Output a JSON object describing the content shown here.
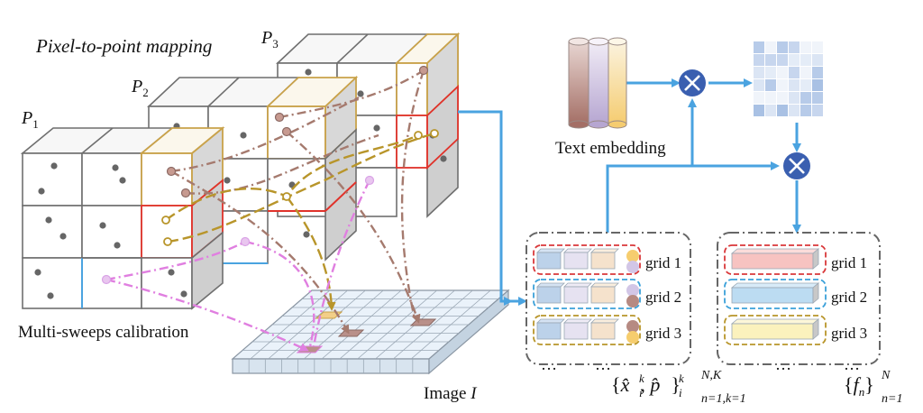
{
  "title": "Pixel-to-point mapping",
  "voxel_groups": [
    {
      "label": "P",
      "sub": "1"
    },
    {
      "label": "P",
      "sub": "2"
    },
    {
      "label": "P",
      "sub": "3"
    }
  ],
  "left_caption": "Multi-sweeps calibration",
  "image_label": "Image ",
  "image_label_var": "I",
  "text_embedding_label": "Text embedding",
  "grids_left": [
    {
      "label": "grid 1",
      "color": "#d9383a"
    },
    {
      "label": "grid 2",
      "color": "#3aa0d9"
    },
    {
      "label": "grid 3",
      "color": "#b8952a"
    }
  ],
  "grids_right": [
    {
      "label": "grid 1",
      "color": "#d9383a"
    },
    {
      "label": "grid 2",
      "color": "#3aa0d9"
    },
    {
      "label": "grid 3",
      "color": "#b8952a"
    }
  ],
  "left_set_formula": {
    "open": "{",
    "x": "x̂",
    "x_sup": "k",
    "x_sub": "i",
    "sep": ", ",
    "p": "p̂",
    "p_sup": "k",
    "p_sub": "i",
    "close": "}",
    "upper": "N,K",
    "lower": "n=1,k=1"
  },
  "right_set_formula": {
    "open": "{",
    "f": "f",
    "f_sub": "n",
    "close": "}",
    "upper": "N",
    "lower": "n=1"
  },
  "ellipsis": "…",
  "colors": {
    "arrow": "#4aa3e0",
    "operator": "#3a5fb0",
    "red_cell": "#e0322a",
    "gold_cell": "#c9a24a",
    "blue_cell": "#4aa3e0",
    "pink_path": "#e07fe0",
    "brown_path": "#a57a6e",
    "gold_path": "#b8952a"
  }
}
